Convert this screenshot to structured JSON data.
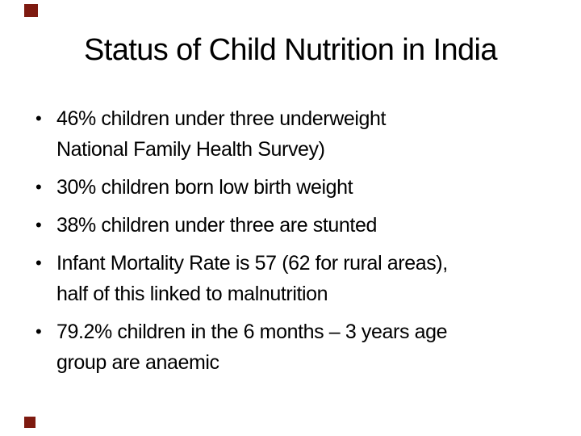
{
  "slide": {
    "title": "Status of Child Nutrition in India",
    "marker": "•",
    "bullets": [
      {
        "lines": [
          "46% children under three underweight",
          "National Family Health Survey)"
        ]
      },
      {
        "lines": [
          "30% children born low birth weight"
        ]
      },
      {
        "lines": [
          "38% children under three are stunted"
        ]
      },
      {
        "lines": [
          "Infant Mortality Rate is 57 (62 for rural areas),",
          "half of this linked to malnutrition"
        ]
      },
      {
        "lines": [
          "79.2% children in the 6 months – 3 years age",
          "group are anaemic"
        ]
      }
    ],
    "colors": {
      "background": "#ffffff",
      "text": "#000000",
      "accent_square": "#7e1a10"
    }
  }
}
